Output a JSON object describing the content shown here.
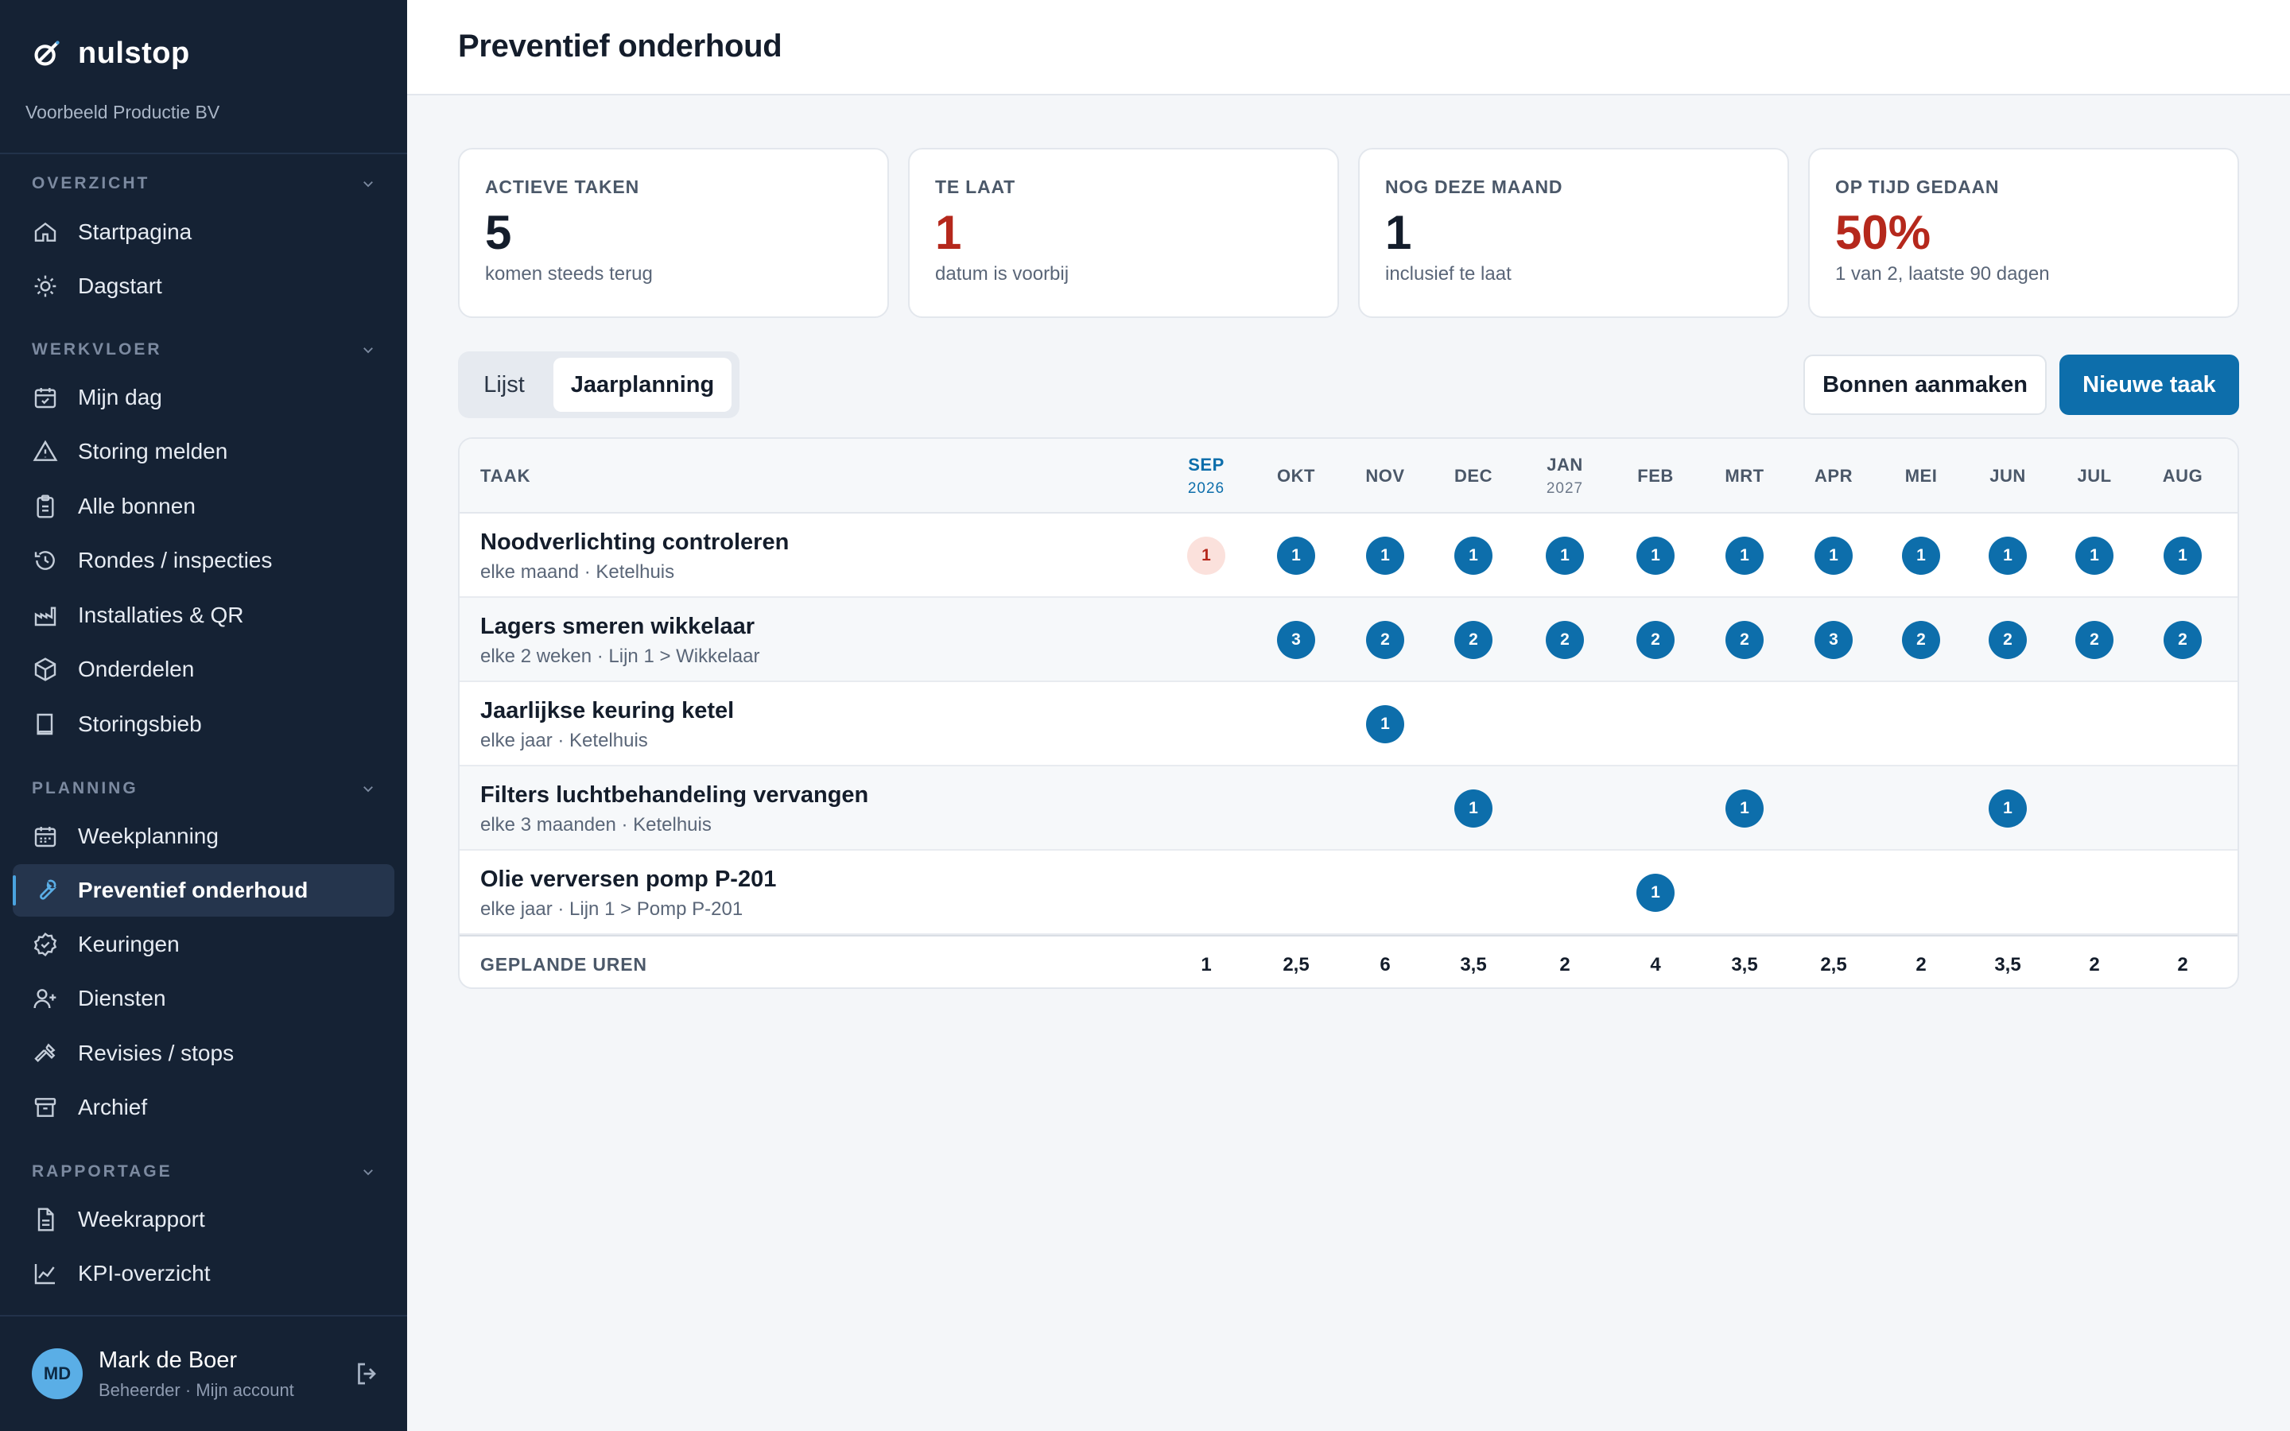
{
  "app": {
    "name": "nulstop",
    "org": "Voorbeeld Productie BV"
  },
  "sidebar": {
    "sections": [
      {
        "title": "OVERZICHT",
        "items": [
          {
            "label": "Startpagina",
            "icon": "home-icon"
          },
          {
            "label": "Dagstart",
            "icon": "sun-icon"
          }
        ]
      },
      {
        "title": "WERKVLOER",
        "items": [
          {
            "label": "Mijn dag",
            "icon": "calendar-check-icon"
          },
          {
            "label": "Storing melden",
            "icon": "warning-icon"
          },
          {
            "label": "Alle bonnen",
            "icon": "clipboard-icon"
          },
          {
            "label": "Rondes / inspecties",
            "icon": "history-icon"
          },
          {
            "label": "Installaties & QR",
            "icon": "factory-icon"
          },
          {
            "label": "Onderdelen",
            "icon": "box-icon"
          },
          {
            "label": "Storingsbieb",
            "icon": "book-icon"
          }
        ]
      },
      {
        "title": "PLANNING",
        "items": [
          {
            "label": "Weekplanning",
            "icon": "calendar-icon"
          },
          {
            "label": "Preventief onderhoud",
            "icon": "wrench-icon",
            "active": true
          },
          {
            "label": "Keuringen",
            "icon": "badge-check-icon"
          },
          {
            "label": "Diensten",
            "icon": "user-plus-icon"
          },
          {
            "label": "Revisies / stops",
            "icon": "hammer-icon"
          },
          {
            "label": "Archief",
            "icon": "archive-icon"
          }
        ]
      },
      {
        "title": "RAPPORTAGE",
        "items": [
          {
            "label": "Weekrapport",
            "icon": "file-text-icon"
          },
          {
            "label": "KPI-overzicht",
            "icon": "chart-line-icon"
          }
        ]
      }
    ]
  },
  "user": {
    "initials": "MD",
    "name": "Mark de Boer",
    "sub": "Beheerder · Mijn account"
  },
  "page": {
    "title": "Preventief onderhoud"
  },
  "stats": [
    {
      "label": "ACTIEVE TAKEN",
      "value": "5",
      "sub": "komen steeds terug",
      "alert": false
    },
    {
      "label": "TE LAAT",
      "value": "1",
      "sub": "datum is voorbij",
      "alert": true
    },
    {
      "label": "NOG DEZE MAAND",
      "value": "1",
      "sub": "inclusief te laat",
      "alert": false
    },
    {
      "label": "OP TIJD GEDAAN",
      "value": "50%",
      "sub": "1 van 2, laatste 90 dagen",
      "alert": true
    }
  ],
  "view_toggle": {
    "options": [
      "Lijst",
      "Jaarplanning"
    ],
    "selected": "Jaarplanning"
  },
  "actions": {
    "secondary": "Bonnen aanmaken",
    "primary": "Nieuwe taak"
  },
  "table": {
    "task_header": "TAAK",
    "months": [
      {
        "label": "SEP",
        "year": "2026",
        "current": true
      },
      {
        "label": "OKT",
        "year": ""
      },
      {
        "label": "NOV",
        "year": ""
      },
      {
        "label": "DEC",
        "year": ""
      },
      {
        "label": "JAN",
        "year": "2027"
      },
      {
        "label": "FEB",
        "year": ""
      },
      {
        "label": "MRT",
        "year": ""
      },
      {
        "label": "APR",
        "year": ""
      },
      {
        "label": "MEI",
        "year": ""
      },
      {
        "label": "JUN",
        "year": ""
      },
      {
        "label": "JUL",
        "year": ""
      },
      {
        "label": "AUG",
        "year": ""
      }
    ],
    "rows": [
      {
        "name": "Noodverlichting controleren",
        "sub": "elke maand · Ketelhuis",
        "counts": [
          "1",
          "1",
          "1",
          "1",
          "1",
          "1",
          "1",
          "1",
          "1",
          "1",
          "1",
          "1"
        ],
        "late_index": 0
      },
      {
        "name": "Lagers smeren wikkelaar",
        "sub": "elke 2 weken · Lijn 1 > Wikkelaar",
        "counts": [
          "",
          "3",
          "2",
          "2",
          "2",
          "2",
          "2",
          "3",
          "2",
          "2",
          "2",
          "2"
        ]
      },
      {
        "name": "Jaarlijkse keuring ketel",
        "sub": "elke jaar · Ketelhuis",
        "counts": [
          "",
          "",
          "1",
          "",
          "",
          "",
          "",
          "",
          "",
          "",
          "",
          ""
        ]
      },
      {
        "name": "Filters luchtbehandeling vervangen",
        "sub": "elke 3 maanden · Ketelhuis",
        "counts": [
          "",
          "",
          "",
          "1",
          "",
          "",
          "1",
          "",
          "",
          "1",
          "",
          ""
        ]
      },
      {
        "name": "Olie verversen pomp P-201",
        "sub": "elke jaar · Lijn 1 > Pomp P-201",
        "counts": [
          "",
          "",
          "",
          "",
          "",
          "1",
          "",
          "",
          "",
          "",
          "",
          ""
        ]
      }
    ],
    "footer_label": "GEPLANDE UREN",
    "footer_values": [
      "1",
      "2,5",
      "6",
      "3,5",
      "2",
      "4",
      "3,5",
      "2,5",
      "2",
      "3,5",
      "2",
      "2"
    ]
  },
  "colors": {
    "sidebar": "#152234",
    "accent": "#0d6eab",
    "alert": "#b5281c",
    "late_bg": "#fbe1dc"
  }
}
